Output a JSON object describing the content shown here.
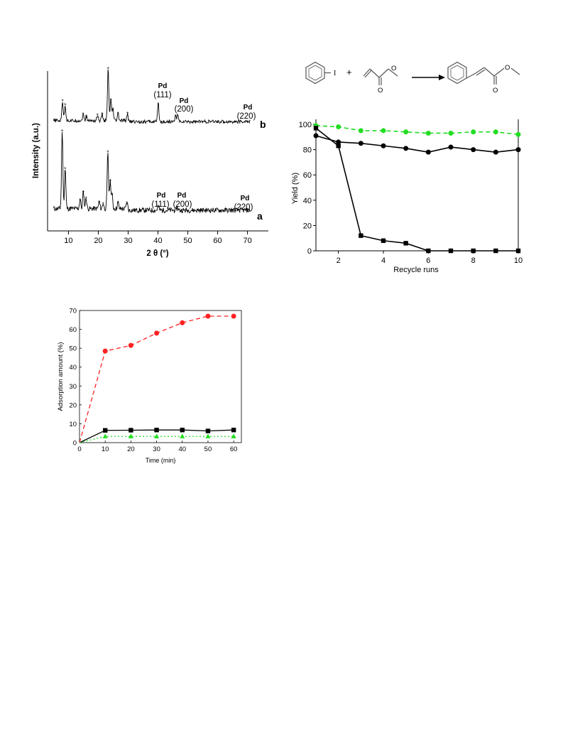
{
  "chart_data": [
    {
      "type": "line",
      "ylabel": "Intensity (a.u.)",
      "xlabel": "2 θ (°)",
      "xlim": [
        3,
        77
      ],
      "xticks": [
        10,
        20,
        30,
        40,
        50,
        60,
        70
      ],
      "yticks": "none",
      "legend": "none",
      "series": [
        {
          "name": "a",
          "peaks": [
            [
              7.9,
              100
            ],
            [
              8.9,
              52
            ],
            [
              13.9,
              12
            ],
            [
              15.0,
              22
            ],
            [
              15.9,
              14
            ],
            [
              20.3,
              9
            ],
            [
              21.6,
              7
            ],
            [
              23.2,
              73
            ],
            [
              24.0,
              36
            ],
            [
              24.6,
              18
            ],
            [
              26.6,
              8
            ],
            [
              29.6,
              8
            ],
            [
              40.1,
              5
            ],
            [
              46.5,
              4
            ]
          ],
          "annotations": [
            {
              "label": "Pd",
              "hkl": "(111)",
              "x": 40.1
            },
            {
              "label": "Pd",
              "hkl": "(200)",
              "x": 46.5
            },
            {
              "label": "Pd",
              "hkl": "(220)",
              "x": 68.2
            }
          ]
        },
        {
          "name": "b",
          "peaks": [
            [
              8.0,
              38
            ],
            [
              8.9,
              30
            ],
            [
              14.9,
              12
            ],
            [
              16.0,
              8
            ],
            [
              19.7,
              10
            ],
            [
              21.3,
              12
            ],
            [
              23.3,
              100
            ],
            [
              24.2,
              40
            ],
            [
              24.9,
              22
            ],
            [
              26.6,
              14
            ],
            [
              29.8,
              14
            ],
            [
              40.1,
              36
            ],
            [
              45.9,
              12
            ],
            [
              46.6,
              14
            ]
          ],
          "annotations": [
            {
              "label": "Pd",
              "hkl": "(111)",
              "x": 40.1
            },
            {
              "label": "Pd",
              "hkl": "(200)",
              "x": 46.5
            },
            {
              "label": "Pd",
              "hkl": "(220)",
              "x": 68.2
            }
          ]
        }
      ]
    },
    {
      "type": "line",
      "xlabel": "Recycle runs",
      "ylabel": "Yield (%)",
      "xlim": [
        1,
        10
      ],
      "ylim": [
        0,
        100
      ],
      "xticks": [
        2,
        4,
        6,
        8,
        10
      ],
      "yticks": [
        0,
        20,
        40,
        60,
        80,
        100
      ],
      "x": [
        1,
        2,
        3,
        4,
        5,
        6,
        7,
        8,
        9,
        10
      ],
      "series": [
        {
          "values": [
            99,
            98,
            95,
            95,
            94,
            93,
            93,
            94,
            94,
            92
          ],
          "color": "#22dd22",
          "dash": true,
          "marker": "circle"
        },
        {
          "values": [
            91,
            86,
            85,
            83,
            81,
            78,
            82,
            80,
            78,
            80
          ],
          "color": "#000000",
          "dash": false,
          "marker": "circle"
        },
        {
          "values": [
            97,
            83,
            12,
            8,
            6,
            0,
            0,
            0,
            0,
            0
          ],
          "color": "#000000",
          "dash": false,
          "marker": "square"
        }
      ]
    },
    {
      "type": "line",
      "xlabel": "Time (min)",
      "ylabel": "Adsorption amount (%)",
      "xlim": [
        0,
        63
      ],
      "ylim": [
        0,
        70
      ],
      "xticks": [
        0,
        10,
        20,
        30,
        40,
        50,
        60
      ],
      "yticks": [
        0,
        10,
        20,
        30,
        40,
        50,
        60,
        70
      ],
      "x": [
        0,
        10,
        20,
        30,
        40,
        50,
        60
      ],
      "series": [
        {
          "values": [
            0,
            48.5,
            51.5,
            58,
            63.5,
            67,
            67
          ],
          "color": "#ff2222",
          "dash": true,
          "marker": "circle"
        },
        {
          "values": [
            0,
            6.5,
            6.6,
            6.7,
            6.7,
            6.2,
            6.7
          ],
          "color": "#000000",
          "dash": false,
          "marker": "square"
        },
        {
          "values": [
            0,
            3.3,
            3.3,
            3.3,
            3.3,
            3.3,
            3.3
          ],
          "color": "#22dd22",
          "dash": "dot",
          "marker": "triangle"
        }
      ]
    }
  ],
  "scheme": {
    "iodo": "I",
    "plus": "+",
    "oxygen": "O"
  }
}
